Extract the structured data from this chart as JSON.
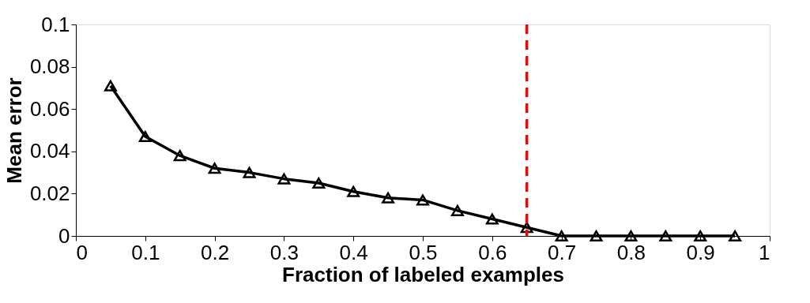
{
  "chart_data": {
    "type": "line",
    "xlabel": "Fraction of labeled examples",
    "ylabel": "Mean error",
    "x": [
      0.05,
      0.1,
      0.15,
      0.2,
      0.25,
      0.3,
      0.35,
      0.4,
      0.45,
      0.5,
      0.55,
      0.6,
      0.65,
      0.7,
      0.75,
      0.8,
      0.85,
      0.9,
      0.95
    ],
    "series": [
      {
        "color": "#000000",
        "values": [
          0.071,
          0.047,
          0.038,
          0.032,
          0.03,
          0.027,
          0.025,
          0.021,
          0.018,
          0.017,
          0.012,
          0.008,
          0.004,
          0,
          0,
          0,
          0,
          0,
          0
        ]
      }
    ],
    "xlim": [
      0,
      1
    ],
    "xticks": [
      0,
      0.1,
      0.2,
      0.3,
      0.4,
      0.5,
      0.6,
      0.7,
      0.8,
      0.9,
      1
    ],
    "ylim": [
      0,
      0.1
    ],
    "yticks": [
      0,
      0.02,
      0.04,
      0.06,
      0.08,
      0.1
    ],
    "ref_lines": [
      {
        "axis": "x",
        "value": 0.65,
        "color": "#ff0000",
        "line_style": "dashed"
      }
    ],
    "marker": "triangle",
    "line_style": "solid",
    "grid": false
  }
}
